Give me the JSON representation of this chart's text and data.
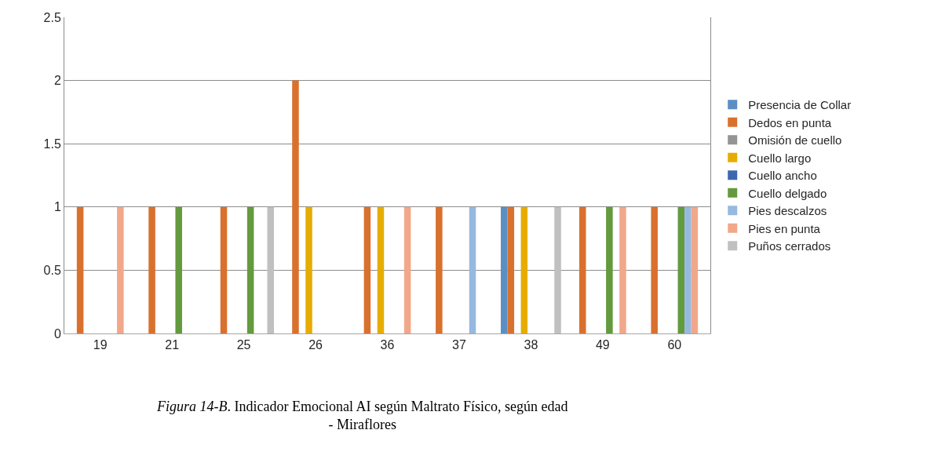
{
  "chart_data": {
    "type": "bar",
    "categories": [
      "19",
      "21",
      "25",
      "26",
      "36",
      "37",
      "38",
      "49",
      "60"
    ],
    "series": [
      {
        "name": "Presencia de Collar",
        "color": "#5b8fc4",
        "values": [
          null,
          null,
          null,
          null,
          null,
          null,
          1,
          null,
          null
        ]
      },
      {
        "name": "Dedos en punta",
        "color": "#d9712e",
        "values": [
          1,
          1,
          1,
          2,
          1,
          1,
          1,
          1,
          1
        ]
      },
      {
        "name": "Omisión de cuello",
        "color": "#949494",
        "values": [
          null,
          null,
          null,
          null,
          null,
          null,
          null,
          null,
          null
        ]
      },
      {
        "name": "Cuello largo",
        "color": "#e6ad00",
        "values": [
          null,
          null,
          null,
          1,
          1,
          null,
          1,
          null,
          null
        ]
      },
      {
        "name": "Cuello ancho",
        "color": "#3e67b0",
        "values": [
          null,
          null,
          null,
          null,
          null,
          null,
          null,
          null,
          null
        ]
      },
      {
        "name": "Cuello delgado",
        "color": "#649a3e",
        "values": [
          null,
          1,
          1,
          null,
          null,
          null,
          null,
          1,
          1
        ]
      },
      {
        "name": "Pies descalzos",
        "color": "#97b9e0",
        "values": [
          null,
          null,
          null,
          null,
          null,
          1,
          null,
          null,
          1
        ]
      },
      {
        "name": "Pies en punta",
        "color": "#f1a88a",
        "values": [
          1,
          null,
          null,
          null,
          1,
          null,
          null,
          1,
          1
        ]
      },
      {
        "name": "Puños cerrados",
        "color": "#c0c0c0",
        "values": [
          null,
          null,
          1,
          null,
          null,
          null,
          1,
          null,
          null
        ]
      }
    ],
    "ylim": [
      0,
      2.5
    ],
    "yticks": [
      0,
      0.5,
      1,
      1.5,
      2,
      2.5
    ],
    "grid": "y",
    "legend": "right",
    "annotations": [
      "Figura 14-B. Indicador Emocional AI según Maltrato Físico, según edad - Miraflores"
    ]
  }
}
